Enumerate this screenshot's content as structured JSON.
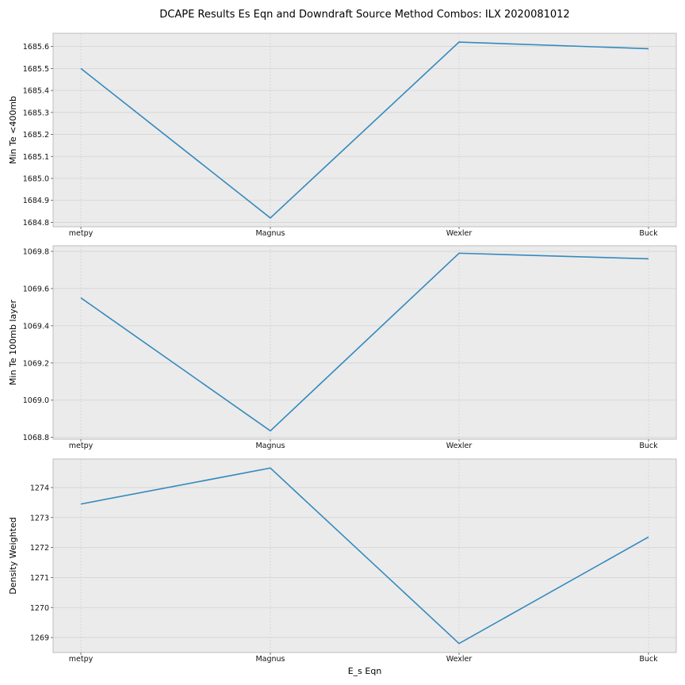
{
  "title": "DCAPE Results Es Eqn and Downdraft Source Method Combos: ILX 2020081012",
  "chart_data": [
    {
      "type": "line",
      "categories": [
        "metpy",
        "Magnus",
        "Wexler",
        "Buck"
      ],
      "values": [
        1685.5,
        1684.82,
        1685.62,
        1685.59
      ],
      "ylabel": "Min Te <400mb",
      "xlabel": "",
      "ylim": [
        1684.78,
        1685.66
      ],
      "yticks": [
        1684.8,
        1684.9,
        1685.0,
        1685.1,
        1685.2,
        1685.3,
        1685.4,
        1685.5,
        1685.6
      ],
      "ytick_labels": [
        "1684.8",
        "1684.9",
        "1685.0",
        "1685.1",
        "1685.2",
        "1685.3",
        "1685.4",
        "1685.5",
        "1685.6"
      ],
      "color": "#348abd",
      "grid": true
    },
    {
      "type": "line",
      "categories": [
        "metpy",
        "Magnus",
        "Wexler",
        "Buck"
      ],
      "values": [
        1069.55,
        1068.835,
        1069.79,
        1069.76
      ],
      "ylabel": "Min Te 100mb layer",
      "xlabel": "",
      "ylim": [
        1068.79,
        1069.83
      ],
      "yticks": [
        1068.8,
        1069.0,
        1069.2,
        1069.4,
        1069.6,
        1069.8
      ],
      "ytick_labels": [
        "1068.8",
        "1069.0",
        "1069.2",
        "1069.4",
        "1069.6",
        "1069.8"
      ],
      "color": "#348abd",
      "grid": true
    },
    {
      "type": "line",
      "categories": [
        "metpy",
        "Magnus",
        "Wexler",
        "Buck"
      ],
      "values": [
        1273.45,
        1274.65,
        1268.8,
        1272.35
      ],
      "ylabel": "Density Weighted",
      "xlabel": "E_s Eqn",
      "ylim": [
        1268.5,
        1274.95
      ],
      "yticks": [
        1269,
        1270,
        1271,
        1272,
        1273,
        1274
      ],
      "ytick_labels": [
        "1269",
        "1270",
        "1271",
        "1272",
        "1273",
        "1274"
      ],
      "color": "#348abd",
      "grid": true
    }
  ]
}
